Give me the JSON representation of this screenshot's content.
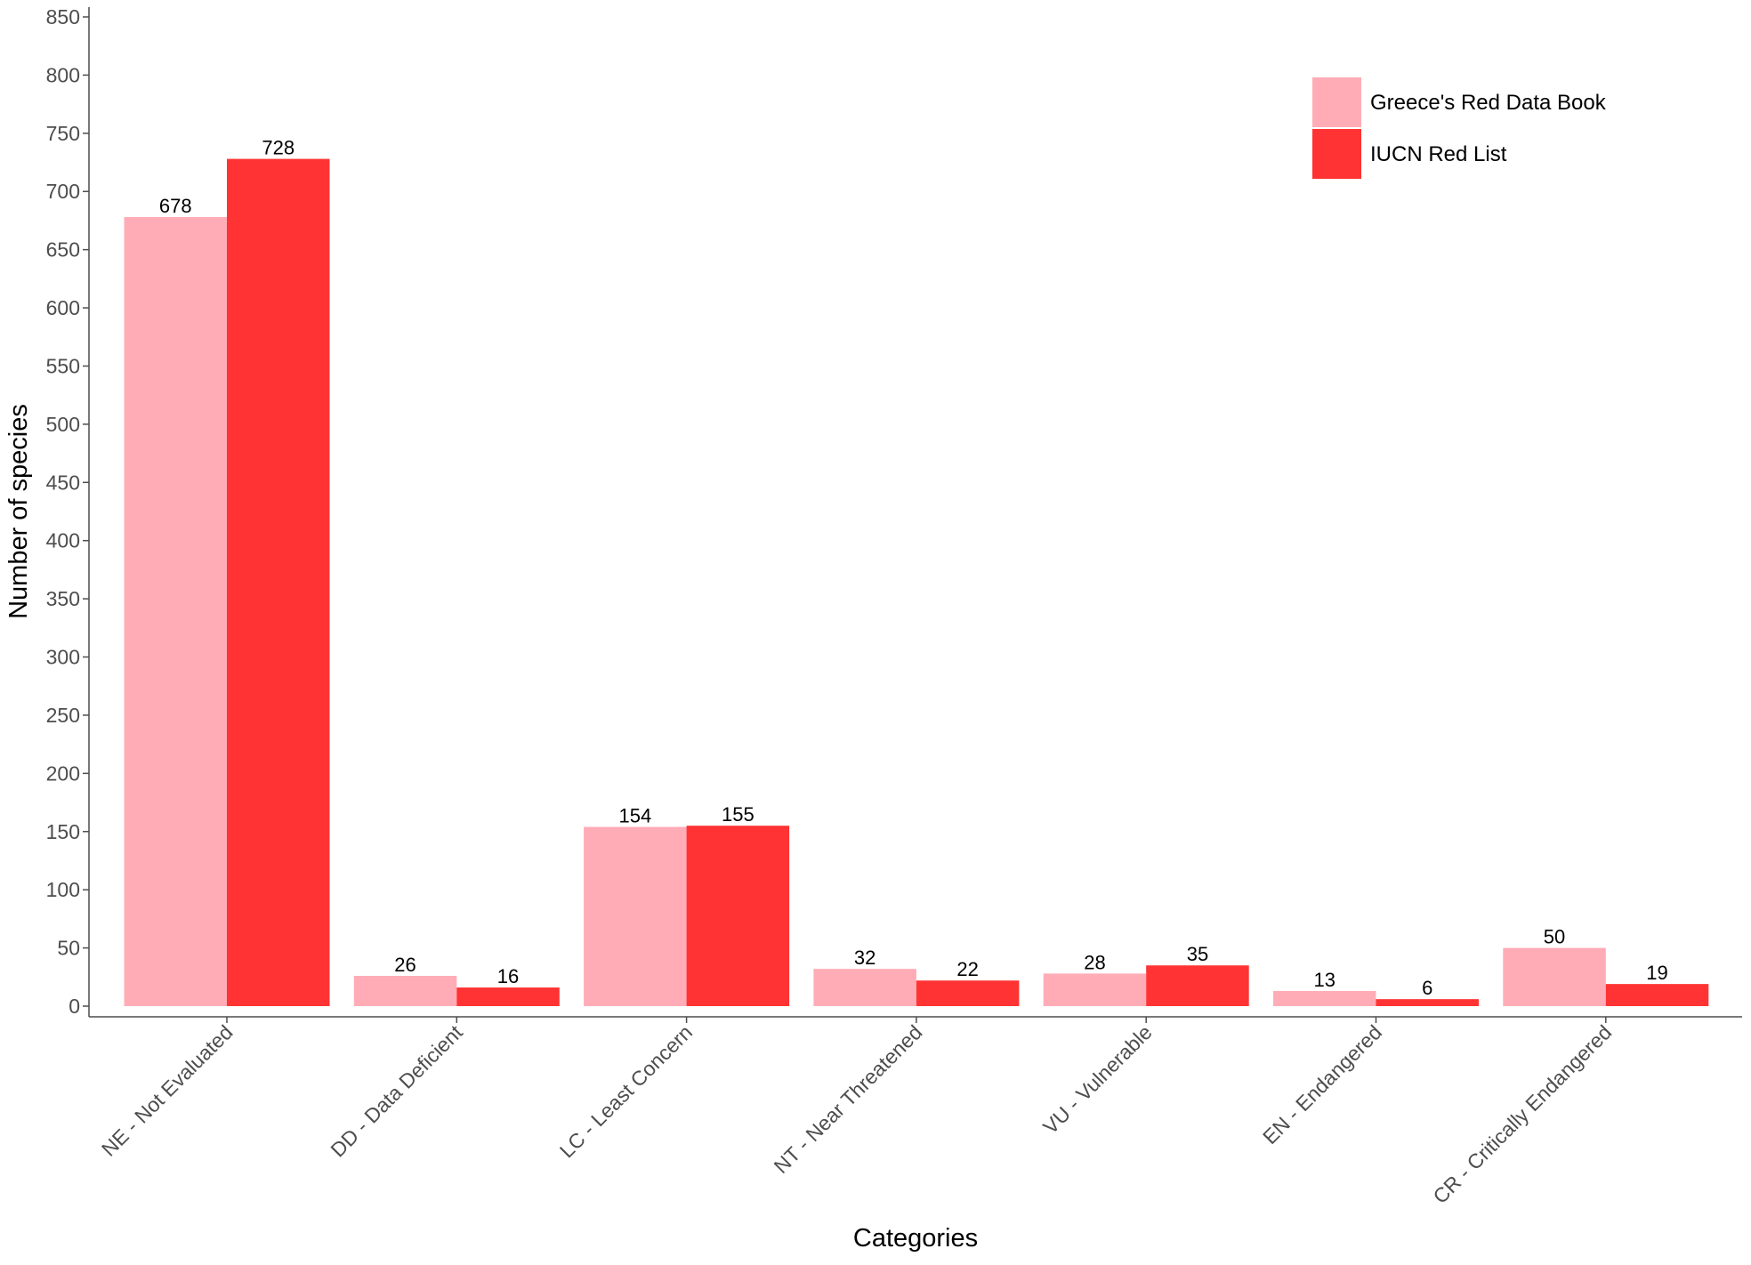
{
  "chart_data": {
    "type": "bar",
    "title": "",
    "xlabel": "Categories",
    "ylabel": "Number of species",
    "ylim": [
      0,
      850
    ],
    "yticks": [
      0,
      50,
      100,
      150,
      200,
      250,
      300,
      350,
      400,
      450,
      500,
      550,
      600,
      650,
      700,
      750,
      800,
      850
    ],
    "grid": false,
    "legend_position": "top-right",
    "categories": [
      "NE - Not Evaluated",
      "DD - Data Deficient",
      "LC - Least Concern",
      "NT - Near Threatened",
      "VU - Vulnerable",
      "EN - Endangered",
      "CR - Critically Endangered"
    ],
    "series": [
      {
        "name": "Greece's Red Data Book",
        "color": "#FFACB7",
        "values": [
          678,
          26,
          154,
          32,
          28,
          13,
          50
        ]
      },
      {
        "name": "IUCN Red List",
        "color": "#FF3333",
        "values": [
          728,
          16,
          155,
          22,
          35,
          6,
          19
        ]
      }
    ]
  }
}
